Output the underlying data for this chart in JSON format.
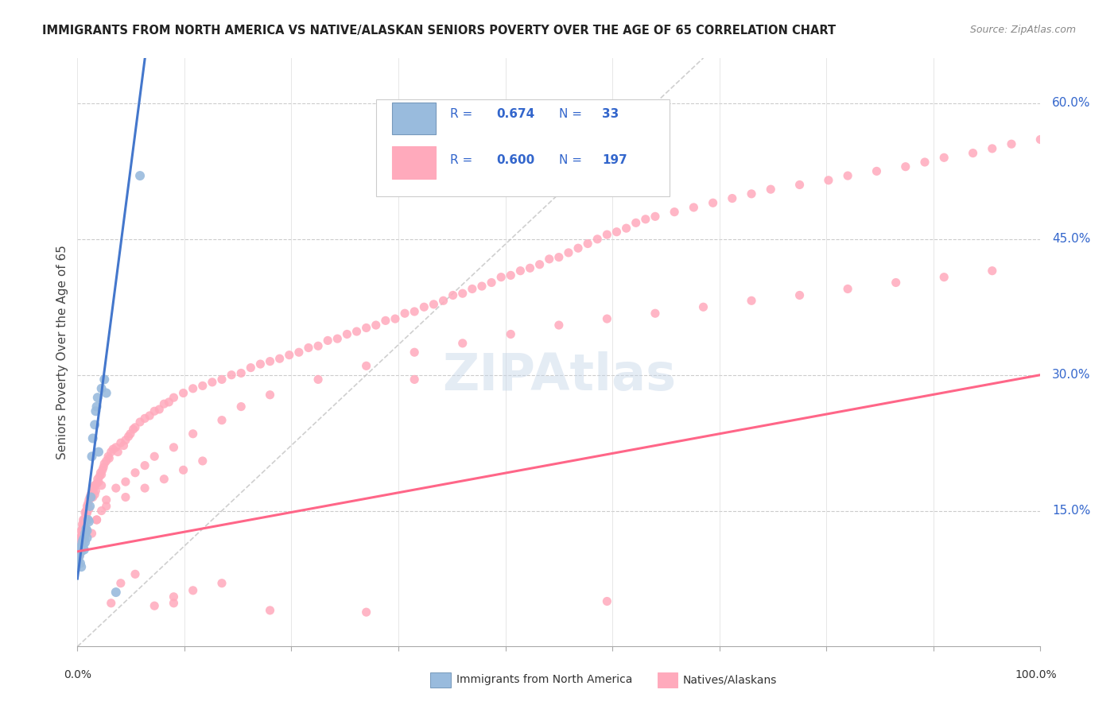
{
  "title": "IMMIGRANTS FROM NORTH AMERICA VS NATIVE/ALASKAN SENIORS POVERTY OVER THE AGE OF 65 CORRELATION CHART",
  "source": "Source: ZipAtlas.com",
  "ylabel": "Seniors Poverty Over the Age of 65",
  "ytick_labels": [
    "15.0%",
    "30.0%",
    "45.0%",
    "60.0%"
  ],
  "ytick_positions": [
    0.15,
    0.3,
    0.45,
    0.6
  ],
  "blue_color": "#99BBDD",
  "pink_color": "#FFAABC",
  "blue_line_color": "#4477CC",
  "pink_line_color": "#FF6688",
  "diagonal_color": "#BBBBBB",
  "watermark_color": "#C5D5E8",
  "background_color": "#FFFFFF",
  "blue_scatter_x": [
    0.001,
    0.002,
    0.002,
    0.003,
    0.003,
    0.004,
    0.004,
    0.005,
    0.006,
    0.006,
    0.007,
    0.007,
    0.008,
    0.008,
    0.009,
    0.01,
    0.01,
    0.011,
    0.012,
    0.013,
    0.014,
    0.015,
    0.016,
    0.018,
    0.019,
    0.02,
    0.021,
    0.022,
    0.025,
    0.028,
    0.03,
    0.04,
    0.065
  ],
  "blue_scatter_y": [
    0.095,
    0.1,
    0.108,
    0.092,
    0.11,
    0.088,
    0.105,
    0.115,
    0.112,
    0.118,
    0.12,
    0.107,
    0.125,
    0.115,
    0.13,
    0.12,
    0.128,
    0.14,
    0.138,
    0.155,
    0.165,
    0.21,
    0.23,
    0.245,
    0.26,
    0.265,
    0.275,
    0.215,
    0.285,
    0.295,
    0.28,
    0.06,
    0.52
  ],
  "pink_scatter_x": [
    0.001,
    0.001,
    0.002,
    0.002,
    0.002,
    0.003,
    0.003,
    0.003,
    0.004,
    0.004,
    0.004,
    0.005,
    0.005,
    0.005,
    0.005,
    0.006,
    0.006,
    0.006,
    0.007,
    0.007,
    0.008,
    0.008,
    0.009,
    0.009,
    0.01,
    0.01,
    0.011,
    0.012,
    0.013,
    0.014,
    0.015,
    0.016,
    0.017,
    0.018,
    0.019,
    0.02,
    0.021,
    0.022,
    0.023,
    0.024,
    0.025,
    0.026,
    0.027,
    0.028,
    0.03,
    0.032,
    0.033,
    0.035,
    0.037,
    0.04,
    0.042,
    0.045,
    0.048,
    0.05,
    0.053,
    0.055,
    0.058,
    0.06,
    0.065,
    0.07,
    0.075,
    0.08,
    0.085,
    0.09,
    0.095,
    0.1,
    0.11,
    0.12,
    0.13,
    0.14,
    0.15,
    0.16,
    0.17,
    0.18,
    0.19,
    0.2,
    0.21,
    0.22,
    0.23,
    0.24,
    0.25,
    0.26,
    0.27,
    0.28,
    0.29,
    0.3,
    0.31,
    0.32,
    0.33,
    0.34,
    0.35,
    0.36,
    0.37,
    0.38,
    0.39,
    0.4,
    0.41,
    0.42,
    0.43,
    0.44,
    0.45,
    0.46,
    0.47,
    0.48,
    0.49,
    0.5,
    0.51,
    0.52,
    0.53,
    0.54,
    0.55,
    0.56,
    0.57,
    0.58,
    0.59,
    0.6,
    0.62,
    0.64,
    0.66,
    0.68,
    0.7,
    0.72,
    0.75,
    0.78,
    0.8,
    0.83,
    0.86,
    0.88,
    0.9,
    0.93,
    0.95,
    0.97,
    1.0,
    0.015,
    0.02,
    0.025,
    0.03,
    0.04,
    0.05,
    0.06,
    0.07,
    0.08,
    0.1,
    0.12,
    0.15,
    0.17,
    0.2,
    0.25,
    0.3,
    0.35,
    0.4,
    0.45,
    0.5,
    0.55,
    0.6,
    0.65,
    0.7,
    0.75,
    0.8,
    0.85,
    0.9,
    0.95,
    0.003,
    0.005,
    0.007,
    0.009,
    0.01,
    0.02,
    0.03,
    0.05,
    0.07,
    0.09,
    0.11,
    0.13,
    0.35,
    0.55,
    0.1,
    0.2,
    0.3,
    0.008,
    0.012,
    0.018,
    0.025,
    0.035,
    0.045,
    0.06,
    0.08,
    0.1,
    0.12,
    0.15
  ],
  "pink_scatter_y": [
    0.105,
    0.112,
    0.1,
    0.115,
    0.108,
    0.11,
    0.12,
    0.118,
    0.115,
    0.122,
    0.128,
    0.125,
    0.13,
    0.118,
    0.135,
    0.132,
    0.125,
    0.14,
    0.138,
    0.13,
    0.142,
    0.148,
    0.145,
    0.15,
    0.148,
    0.155,
    0.158,
    0.162,
    0.165,
    0.168,
    0.17,
    0.165,
    0.175,
    0.178,
    0.172,
    0.18,
    0.185,
    0.182,
    0.188,
    0.192,
    0.19,
    0.195,
    0.198,
    0.202,
    0.205,
    0.21,
    0.208,
    0.215,
    0.218,
    0.22,
    0.215,
    0.225,
    0.222,
    0.228,
    0.232,
    0.235,
    0.24,
    0.242,
    0.248,
    0.252,
    0.255,
    0.26,
    0.262,
    0.268,
    0.27,
    0.275,
    0.28,
    0.285,
    0.288,
    0.292,
    0.295,
    0.3,
    0.302,
    0.308,
    0.312,
    0.315,
    0.318,
    0.322,
    0.325,
    0.33,
    0.332,
    0.338,
    0.34,
    0.345,
    0.348,
    0.352,
    0.355,
    0.36,
    0.362,
    0.368,
    0.37,
    0.375,
    0.378,
    0.382,
    0.388,
    0.39,
    0.395,
    0.398,
    0.402,
    0.408,
    0.41,
    0.415,
    0.418,
    0.422,
    0.428,
    0.43,
    0.435,
    0.44,
    0.445,
    0.45,
    0.455,
    0.458,
    0.462,
    0.468,
    0.472,
    0.475,
    0.48,
    0.485,
    0.49,
    0.495,
    0.5,
    0.505,
    0.51,
    0.515,
    0.52,
    0.525,
    0.53,
    0.535,
    0.54,
    0.545,
    0.55,
    0.555,
    0.56,
    0.125,
    0.14,
    0.15,
    0.162,
    0.175,
    0.182,
    0.192,
    0.2,
    0.21,
    0.22,
    0.235,
    0.25,
    0.265,
    0.278,
    0.295,
    0.31,
    0.325,
    0.335,
    0.345,
    0.355,
    0.362,
    0.368,
    0.375,
    0.382,
    0.388,
    0.395,
    0.402,
    0.408,
    0.415,
    0.108,
    0.12,
    0.135,
    0.142,
    0.148,
    0.14,
    0.155,
    0.165,
    0.175,
    0.185,
    0.195,
    0.205,
    0.295,
    0.05,
    0.048,
    0.04,
    0.038,
    0.13,
    0.152,
    0.168,
    0.178,
    0.048,
    0.07,
    0.08,
    0.045,
    0.055,
    0.062,
    0.07
  ]
}
